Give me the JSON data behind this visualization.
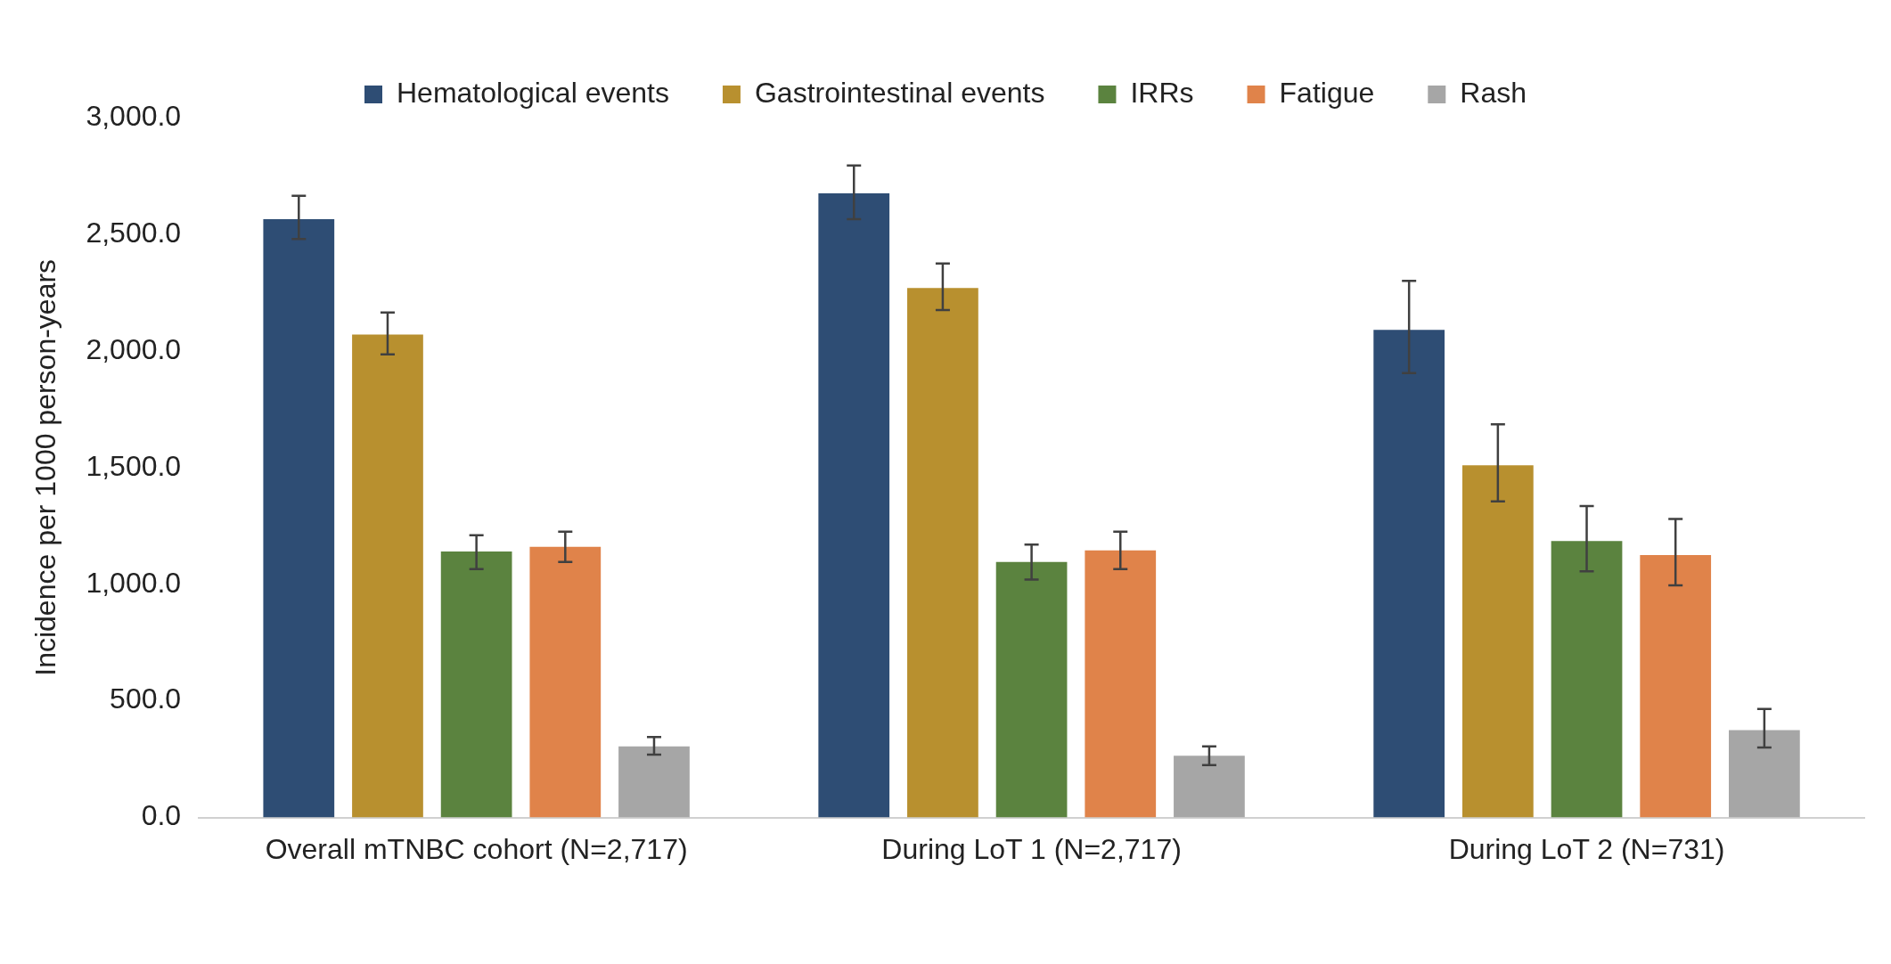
{
  "chart_data": {
    "type": "bar",
    "ylabel": "Incidence per 1000 person-years",
    "categories": [
      "Overall mTNBC cohort (N=2,717)",
      "During LoT 1 (N=2,717)",
      "During LoT 2 (N=731)"
    ],
    "series": [
      {
        "name": "Hematological events",
        "color": "#2e4d74",
        "values": [
          2565,
          2675,
          2090
        ],
        "errors": [
          [
            2480,
            2665
          ],
          [
            2565,
            2795
          ],
          [
            1905,
            2300
          ]
        ]
      },
      {
        "name": "Gastrointestinal events",
        "color": "#b8902f",
        "values": [
          2070,
          2270,
          1510
        ],
        "errors": [
          [
            1985,
            2165
          ],
          [
            2175,
            2375
          ],
          [
            1355,
            1685
          ]
        ]
      },
      {
        "name": "IRRs",
        "color": "#5b833f",
        "values": [
          1140,
          1095,
          1185
        ],
        "errors": [
          [
            1065,
            1210
          ],
          [
            1020,
            1170
          ],
          [
            1055,
            1335
          ]
        ]
      },
      {
        "name": "Fatigue",
        "color": "#e0834a",
        "values": [
          1160,
          1145,
          1125
        ],
        "errors": [
          [
            1095,
            1225
          ],
          [
            1065,
            1225
          ],
          [
            995,
            1280
          ]
        ]
      },
      {
        "name": "Rash",
        "color": "#a6a6a6",
        "values": [
          305,
          265,
          375
        ],
        "errors": [
          [
            270,
            345
          ],
          [
            225,
            305
          ],
          [
            300,
            465
          ]
        ]
      }
    ],
    "ylim": [
      0,
      3000
    ],
    "yticks": [
      {
        "value": 0,
        "label": "0.0"
      },
      {
        "value": 500,
        "label": "500.0"
      },
      {
        "value": 1000,
        "label": "1,000.0"
      },
      {
        "value": 1500,
        "label": "1,500.0"
      },
      {
        "value": 2000,
        "label": "2,000.0"
      },
      {
        "value": 2500,
        "label": "2,500.0"
      },
      {
        "value": 3000,
        "label": "3,000.0"
      }
    ],
    "grid": false,
    "legend": "top"
  }
}
